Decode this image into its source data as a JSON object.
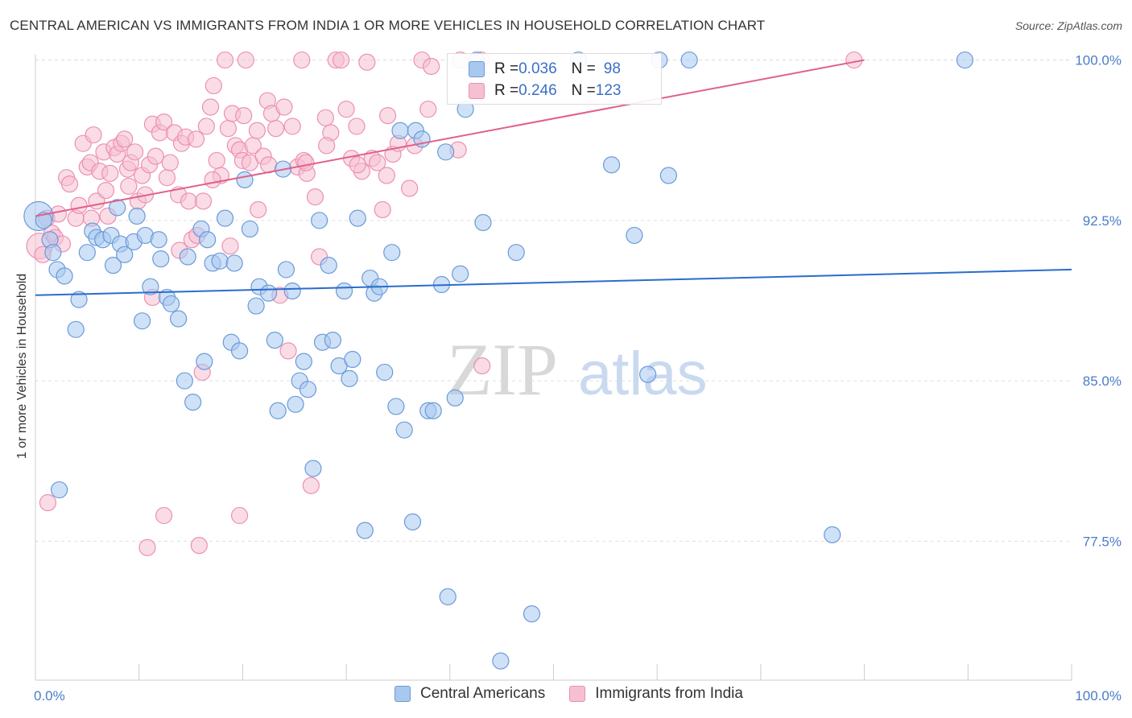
{
  "title": "CENTRAL AMERICAN VS IMMIGRANTS FROM INDIA 1 OR MORE VEHICLES IN HOUSEHOLD CORRELATION CHART",
  "source": "Source: ZipAtlas.com",
  "watermark": {
    "zip": "ZIP",
    "atlas": "atlas"
  },
  "colors": {
    "blue_fill": "#a8c8f0",
    "blue_stroke": "#6a9ad8",
    "blue_line": "#2a6ccc",
    "pink_fill": "#f6bfd2",
    "pink_stroke": "#ec90b0",
    "pink_line": "#e0608c",
    "axis_label": "#4a7cc8",
    "grid": "#e0e0e0"
  },
  "legend": {
    "rows": [
      {
        "r_label": "R = ",
        "r_value": "0.036",
        "n_label": "N = ",
        "n_value": "98"
      },
      {
        "r_label": "R = ",
        "r_value": "0.246",
        "n_label": "N = ",
        "n_value": "123"
      }
    ]
  },
  "bottom_legend": [
    "Central Americans",
    "Immigrants from India"
  ],
  "chart_data": {
    "type": "scatter",
    "title": "CENTRAL AMERICAN VS IMMIGRANTS FROM INDIA 1 OR MORE VEHICLES IN HOUSEHOLD CORRELATION CHART",
    "xlabel": "",
    "ylabel": "1 or more Vehicles in Household",
    "xlim": [
      0,
      100
    ],
    "ylim": [
      71,
      101
    ],
    "x_tick_labels": [
      "0.0%",
      "100.0%"
    ],
    "y_ticks": [
      77.5,
      85.0,
      92.5,
      100.0
    ],
    "y_tick_labels": [
      "77.5%",
      "85.0%",
      "92.5%",
      "100.0%"
    ],
    "grid": true,
    "legend_position": "top-center",
    "series": [
      {
        "name": "Central Americans",
        "r": 0.036,
        "n": 98,
        "trend": [
          [
            0,
            89.0
          ],
          [
            100,
            90.2
          ]
        ],
        "points": [
          [
            0.3,
            92.7
          ],
          [
            0.8,
            92.5
          ],
          [
            1.4,
            91.6
          ],
          [
            1.7,
            91.0
          ],
          [
            2.1,
            90.2
          ],
          [
            2.8,
            89.9
          ],
          [
            3.9,
            87.4
          ],
          [
            4.2,
            88.8
          ],
          [
            5.0,
            91.0
          ],
          [
            5.5,
            92.0
          ],
          [
            5.9,
            91.7
          ],
          [
            6.5,
            91.6
          ],
          [
            7.3,
            91.8
          ],
          [
            7.5,
            90.4
          ],
          [
            7.9,
            93.1
          ],
          [
            8.2,
            91.4
          ],
          [
            8.6,
            90.9
          ],
          [
            9.5,
            91.5
          ],
          [
            9.8,
            92.7
          ],
          [
            10.3,
            87.8
          ],
          [
            10.6,
            91.8
          ],
          [
            11.1,
            89.4
          ],
          [
            11.9,
            91.6
          ],
          [
            12.1,
            90.7
          ],
          [
            12.7,
            88.9
          ],
          [
            13.1,
            88.6
          ],
          [
            13.8,
            87.9
          ],
          [
            14.4,
            85.0
          ],
          [
            14.7,
            90.8
          ],
          [
            15.2,
            84.0
          ],
          [
            16.3,
            85.9
          ],
          [
            16.0,
            92.1
          ],
          [
            16.6,
            91.6
          ],
          [
            17.1,
            90.5
          ],
          [
            17.8,
            90.6
          ],
          [
            18.3,
            92.6
          ],
          [
            18.9,
            86.8
          ],
          [
            19.2,
            90.5
          ],
          [
            19.7,
            86.4
          ],
          [
            20.2,
            94.4
          ],
          [
            20.7,
            92.1
          ],
          [
            21.3,
            88.5
          ],
          [
            21.6,
            89.4
          ],
          [
            22.5,
            89.1
          ],
          [
            23.1,
            86.9
          ],
          [
            23.4,
            83.6
          ],
          [
            23.9,
            94.9
          ],
          [
            24.2,
            90.2
          ],
          [
            24.8,
            89.2
          ],
          [
            25.1,
            83.9
          ],
          [
            25.5,
            85.0
          ],
          [
            25.9,
            85.9
          ],
          [
            26.3,
            84.6
          ],
          [
            26.8,
            80.9
          ],
          [
            27.4,
            92.5
          ],
          [
            27.7,
            86.8
          ],
          [
            28.3,
            90.4
          ],
          [
            28.7,
            86.9
          ],
          [
            29.3,
            85.7
          ],
          [
            29.8,
            89.2
          ],
          [
            30.3,
            85.1
          ],
          [
            30.6,
            86.0
          ],
          [
            31.1,
            92.6
          ],
          [
            32.3,
            89.8
          ],
          [
            32.7,
            89.1
          ],
          [
            33.2,
            89.4
          ],
          [
            33.7,
            85.4
          ],
          [
            34.4,
            91.0
          ],
          [
            34.8,
            83.8
          ],
          [
            35.2,
            96.7
          ],
          [
            35.6,
            82.7
          ],
          [
            36.4,
            78.4
          ],
          [
            36.7,
            96.7
          ],
          [
            37.3,
            96.3
          ],
          [
            37.9,
            83.6
          ],
          [
            38.4,
            83.6
          ],
          [
            39.2,
            89.5
          ],
          [
            39.6,
            95.7
          ],
          [
            39.8,
            74.9
          ],
          [
            40.5,
            84.2
          ],
          [
            41.0,
            90.0
          ],
          [
            41.5,
            97.7
          ],
          [
            42.6,
            100.0
          ],
          [
            43.2,
            92.4
          ],
          [
            44.9,
            71.9
          ],
          [
            46.4,
            91.0
          ],
          [
            47.9,
            74.1
          ],
          [
            52.4,
            100.0
          ],
          [
            55.6,
            95.1
          ],
          [
            57.8,
            91.8
          ],
          [
            59.1,
            85.3
          ],
          [
            60.2,
            100.0
          ],
          [
            61.1,
            94.6
          ],
          [
            63.1,
            100.0
          ],
          [
            76.9,
            77.8
          ],
          [
            89.7,
            100.0
          ],
          [
            2.3,
            79.9
          ],
          [
            31.8,
            78.0
          ]
        ]
      },
      {
        "name": "Immigrants from India",
        "r": 0.246,
        "n": 123,
        "trend": [
          [
            0,
            92.7
          ],
          [
            80,
            100.0
          ]
        ],
        "points": [
          [
            0.4,
            91.3
          ],
          [
            0.7,
            90.9
          ],
          [
            1.1,
            92.6
          ],
          [
            1.6,
            91.9
          ],
          [
            1.9,
            91.7
          ],
          [
            2.2,
            92.8
          ],
          [
            2.6,
            91.4
          ],
          [
            3.0,
            94.5
          ],
          [
            3.3,
            94.2
          ],
          [
            3.9,
            92.6
          ],
          [
            4.2,
            93.2
          ],
          [
            4.6,
            96.1
          ],
          [
            5.0,
            95.0
          ],
          [
            5.3,
            95.2
          ],
          [
            5.6,
            96.5
          ],
          [
            5.9,
            93.4
          ],
          [
            6.2,
            94.8
          ],
          [
            6.6,
            95.7
          ],
          [
            6.8,
            93.9
          ],
          [
            7.2,
            94.7
          ],
          [
            7.6,
            95.9
          ],
          [
            7.9,
            95.6
          ],
          [
            8.3,
            96.1
          ],
          [
            8.6,
            96.3
          ],
          [
            8.9,
            94.9
          ],
          [
            9.2,
            95.2
          ],
          [
            9.6,
            95.7
          ],
          [
            9.9,
            93.4
          ],
          [
            10.3,
            94.6
          ],
          [
            10.6,
            93.7
          ],
          [
            11.0,
            95.1
          ],
          [
            11.3,
            97.0
          ],
          [
            11.6,
            95.5
          ],
          [
            12.0,
            96.6
          ],
          [
            12.4,
            97.1
          ],
          [
            12.7,
            94.5
          ],
          [
            13.0,
            95.2
          ],
          [
            13.4,
            96.6
          ],
          [
            13.8,
            93.7
          ],
          [
            14.1,
            96.1
          ],
          [
            14.5,
            96.4
          ],
          [
            14.8,
            93.4
          ],
          [
            15.1,
            91.6
          ],
          [
            15.5,
            96.3
          ],
          [
            15.8,
            77.3
          ],
          [
            16.2,
            93.4
          ],
          [
            16.5,
            96.9
          ],
          [
            16.9,
            97.8
          ],
          [
            17.2,
            98.8
          ],
          [
            17.5,
            95.3
          ],
          [
            17.9,
            94.6
          ],
          [
            18.3,
            100.0
          ],
          [
            18.6,
            96.8
          ],
          [
            19.0,
            97.5
          ],
          [
            19.3,
            96.0
          ],
          [
            19.7,
            95.8
          ],
          [
            20.0,
            95.3
          ],
          [
            20.3,
            100.0
          ],
          [
            20.7,
            95.2
          ],
          [
            21.0,
            96.0
          ],
          [
            21.5,
            93.0
          ],
          [
            22.0,
            95.5
          ],
          [
            22.4,
            98.1
          ],
          [
            22.8,
            97.5
          ],
          [
            23.2,
            96.8
          ],
          [
            23.6,
            89.0
          ],
          [
            24.0,
            97.8
          ],
          [
            24.4,
            86.4
          ],
          [
            24.8,
            96.9
          ],
          [
            25.3,
            95.0
          ],
          [
            25.7,
            100.0
          ],
          [
            26.2,
            94.7
          ],
          [
            26.6,
            80.1
          ],
          [
            27.0,
            93.6
          ],
          [
            27.4,
            90.8
          ],
          [
            28.0,
            97.3
          ],
          [
            28.5,
            96.6
          ],
          [
            29.0,
            100.0
          ],
          [
            29.5,
            100.0
          ],
          [
            30.0,
            97.7
          ],
          [
            30.5,
            95.4
          ],
          [
            31.0,
            96.9
          ],
          [
            31.5,
            94.8
          ],
          [
            32.0,
            99.9
          ],
          [
            32.5,
            95.4
          ],
          [
            33.0,
            95.2
          ],
          [
            33.5,
            93.0
          ],
          [
            34.0,
            97.4
          ],
          [
            34.5,
            95.6
          ],
          [
            35.0,
            96.1
          ],
          [
            36.1,
            94.0
          ],
          [
            36.6,
            96.0
          ],
          [
            37.3,
            100.0
          ],
          [
            38.2,
            99.7
          ],
          [
            41.0,
            100.0
          ],
          [
            43.1,
            85.7
          ],
          [
            79.0,
            100.0
          ],
          [
            10.8,
            77.2
          ],
          [
            7.0,
            92.7
          ],
          [
            12.4,
            78.7
          ],
          [
            13.9,
            91.1
          ],
          [
            18.8,
            91.3
          ],
          [
            20.1,
            97.4
          ],
          [
            21.4,
            96.7
          ],
          [
            25.9,
            95.3
          ],
          [
            5.4,
            92.6
          ],
          [
            9.0,
            94.1
          ],
          [
            11.3,
            88.9
          ],
          [
            15.6,
            91.8
          ],
          [
            17.1,
            94.4
          ],
          [
            16.1,
            85.4
          ],
          [
            19.7,
            78.7
          ],
          [
            22.5,
            95.1
          ],
          [
            26.1,
            95.2
          ],
          [
            28.1,
            96.0
          ],
          [
            31.1,
            95.1
          ],
          [
            33.9,
            94.6
          ],
          [
            37.9,
            97.7
          ],
          [
            40.8,
            95.8
          ],
          [
            43.0,
            100.0
          ],
          [
            1.2,
            79.3
          ]
        ]
      }
    ]
  }
}
